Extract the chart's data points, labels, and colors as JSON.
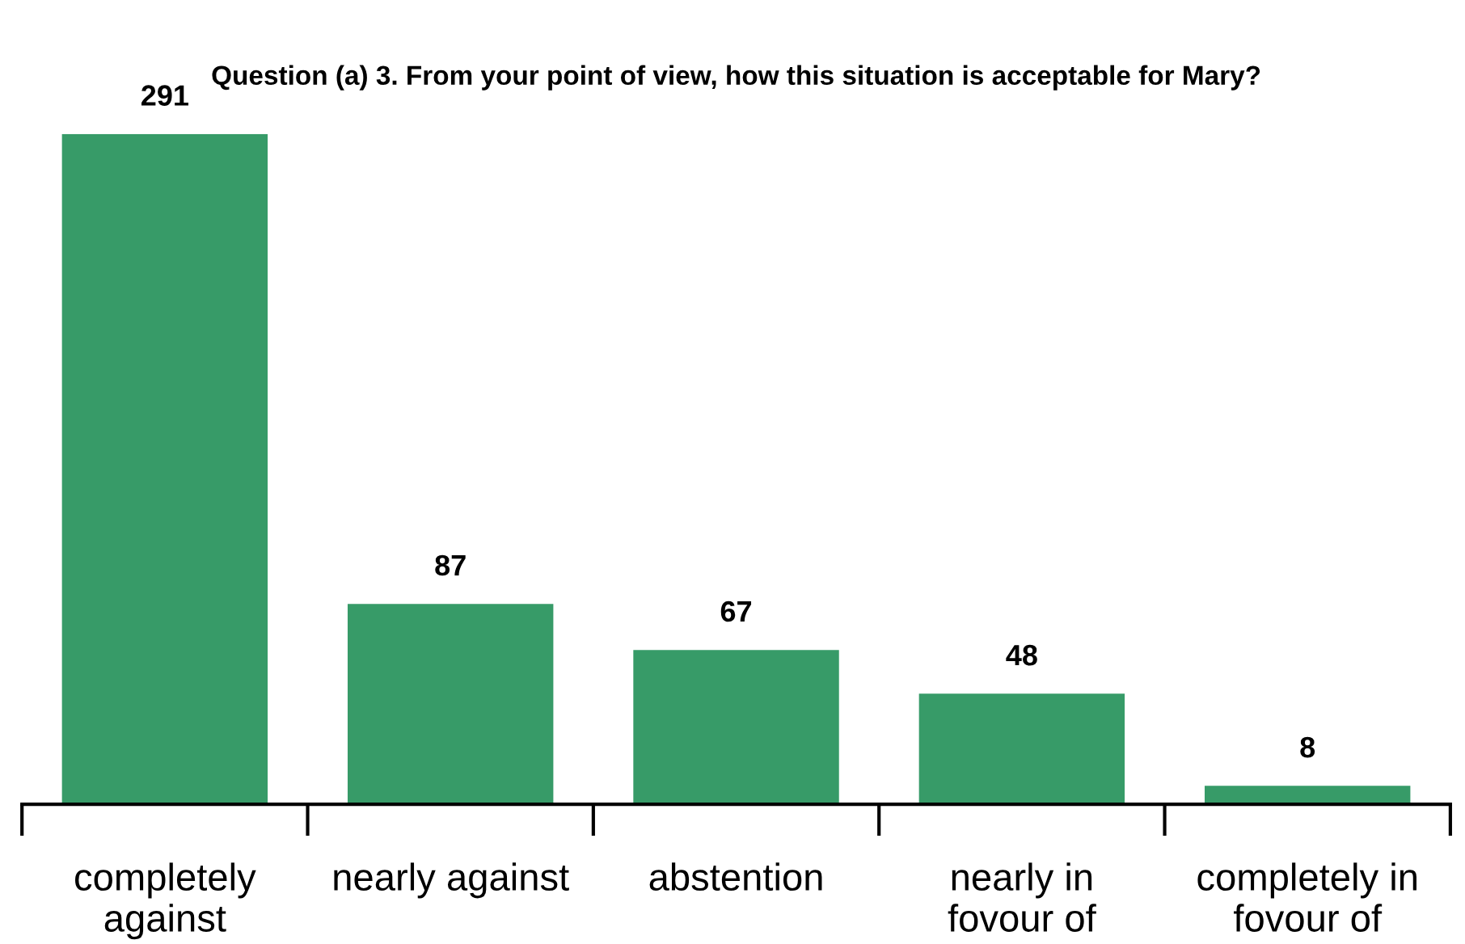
{
  "chart_data": {
    "type": "bar",
    "title": "Question (a) 3. From your point of view, how this situation is acceptable for Mary?",
    "categories": [
      "completely against",
      "nearly against",
      "abstention",
      "nearly in fovour of",
      "completely in fovour of"
    ],
    "values": [
      291,
      87,
      67,
      48,
      8
    ],
    "color": "#379b68",
    "data_labels": true,
    "grid": false,
    "legend": false
  }
}
